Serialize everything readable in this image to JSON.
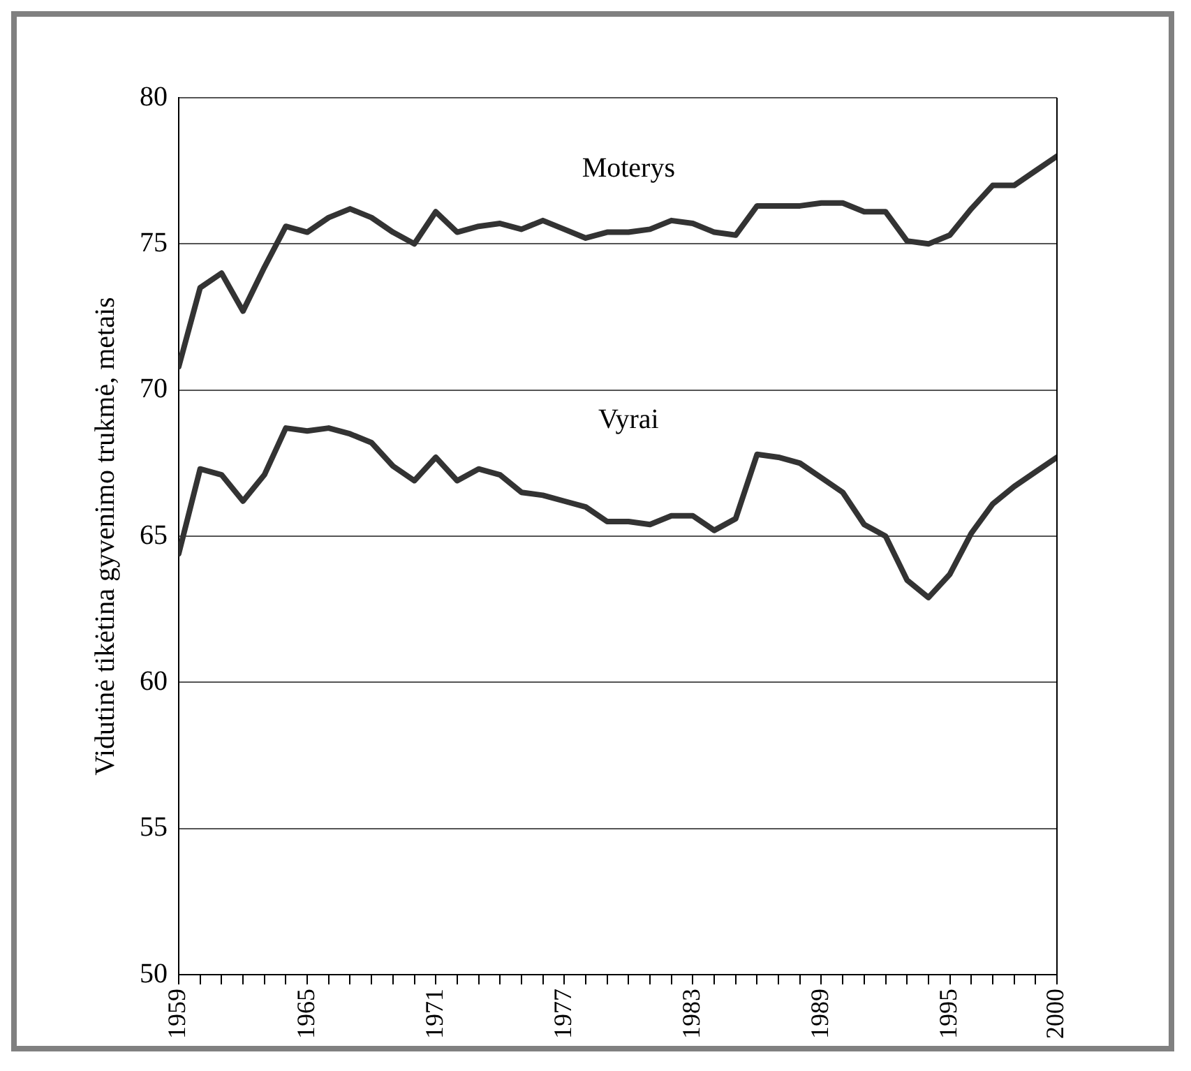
{
  "chart_data": {
    "type": "line",
    "ylabel": "Vidutinė tikėtina gyvenimo trukmė, metais",
    "x": [
      1959,
      1960,
      1961,
      1962,
      1963,
      1964,
      1965,
      1966,
      1967,
      1968,
      1969,
      1970,
      1971,
      1972,
      1973,
      1974,
      1975,
      1976,
      1977,
      1978,
      1979,
      1980,
      1981,
      1982,
      1983,
      1984,
      1985,
      1986,
      1987,
      1988,
      1989,
      1990,
      1991,
      1992,
      1993,
      1994,
      1995,
      1996,
      1997,
      1998,
      1999,
      2000
    ],
    "series": [
      {
        "name": "Moterys",
        "color": "#333333",
        "values": [
          70.8,
          73.5,
          74.0,
          72.7,
          74.2,
          75.6,
          75.4,
          75.9,
          76.2,
          75.9,
          75.4,
          75.0,
          76.1,
          75.4,
          75.6,
          75.7,
          75.5,
          75.8,
          75.5,
          75.2,
          75.4,
          75.4,
          75.5,
          75.8,
          75.7,
          75.4,
          75.3,
          76.3,
          76.3,
          76.3,
          76.4,
          76.4,
          76.1,
          76.1,
          75.1,
          75.0,
          75.3,
          76.2,
          77.0,
          77.0,
          77.5,
          78.0
        ]
      },
      {
        "name": "Vyrai",
        "color": "#333333",
        "values": [
          64.4,
          67.3,
          67.1,
          66.2,
          67.1,
          68.7,
          68.6,
          68.7,
          68.5,
          68.2,
          67.4,
          66.9,
          67.7,
          66.9,
          67.3,
          67.1,
          66.5,
          66.4,
          66.2,
          66.0,
          65.5,
          65.5,
          65.4,
          65.7,
          65.7,
          65.2,
          65.6,
          67.8,
          67.7,
          67.5,
          67.0,
          66.5,
          65.4,
          65.0,
          63.5,
          62.9,
          63.7,
          65.1,
          66.1,
          66.7,
          67.2,
          67.7
        ]
      }
    ],
    "xlim": [
      1959,
      2000
    ],
    "xticks": [
      1959,
      {
        "value": 1960,
        "label": null
      },
      {
        "value": 1961,
        "label": null
      },
      {
        "value": 1962,
        "label": null
      },
      {
        "value": 1963,
        "label": null
      },
      {
        "value": 1964,
        "label": null
      },
      1965,
      {
        "value": 1966,
        "label": null
      },
      {
        "value": 1967,
        "label": null
      },
      {
        "value": 1968,
        "label": null
      },
      {
        "value": 1969,
        "label": null
      },
      {
        "value": 1970,
        "label": null
      },
      1971,
      {
        "value": 1972,
        "label": null
      },
      {
        "value": 1973,
        "label": null
      },
      {
        "value": 1974,
        "label": null
      },
      {
        "value": 1975,
        "label": null
      },
      {
        "value": 1976,
        "label": null
      },
      1977,
      {
        "value": 1978,
        "label": null
      },
      {
        "value": 1979,
        "label": null
      },
      {
        "value": 1980,
        "label": null
      },
      {
        "value": 1981,
        "label": null
      },
      {
        "value": 1982,
        "label": null
      },
      1983,
      {
        "value": 1984,
        "label": null
      },
      {
        "value": 1985,
        "label": null
      },
      {
        "value": 1986,
        "label": null
      },
      {
        "value": 1987,
        "label": null
      },
      {
        "value": 1988,
        "label": null
      },
      1989,
      {
        "value": 1990,
        "label": null
      },
      {
        "value": 1991,
        "label": null
      },
      {
        "value": 1992,
        "label": null
      },
      {
        "value": 1993,
        "label": null
      },
      {
        "value": 1994,
        "label": null
      },
      1995,
      {
        "value": 1996,
        "label": null
      },
      {
        "value": 1997,
        "label": null
      },
      {
        "value": 1998,
        "label": null
      },
      {
        "value": 1999,
        "label": null
      },
      2000
    ],
    "ylim": [
      50,
      80
    ],
    "yticks": [
      50,
      55,
      60,
      65,
      70,
      75,
      80
    ],
    "grid": "y",
    "legend": false,
    "marker": "none",
    "line_style": "solid"
  }
}
